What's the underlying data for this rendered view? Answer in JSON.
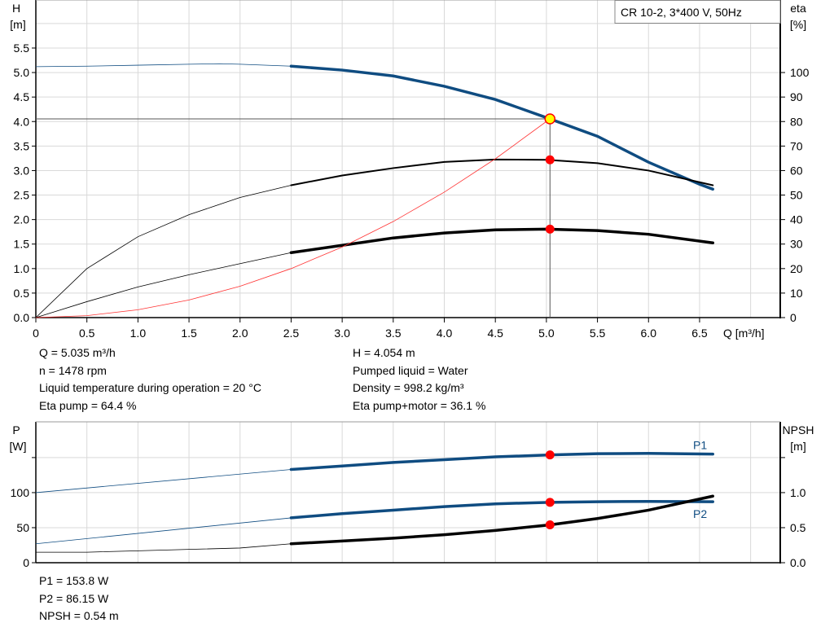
{
  "chart_data": [
    {
      "type": "line",
      "title": "CR 10-2, 3*400 V, 50Hz",
      "xlabel": "Q [m³/h]",
      "ylabel": "H\n[m]",
      "y2label": "eta\n[%]",
      "xlim": [
        0,
        7.29
      ],
      "ylim": [
        0,
        6.48
      ],
      "y2lim": [
        0,
        129.6
      ],
      "xticks": [
        "0",
        "0.5",
        "1.0",
        "1.5",
        "2.0",
        "2.5",
        "3.0",
        "3.5",
        "4.0",
        "4.5",
        "5.0",
        "5.5",
        "6.0",
        "6.5"
      ],
      "yticks": [
        "0.0",
        "0.5",
        "1.0",
        "1.5",
        "2.0",
        "2.5",
        "3.0",
        "3.5",
        "4.0",
        "4.5",
        "5.0",
        "5.5"
      ],
      "y2ticks": [
        "0",
        "10",
        "20",
        "30",
        "40",
        "50",
        "60",
        "70",
        "80",
        "90",
        "100"
      ],
      "grid": true,
      "series": [
        {
          "id": "H",
          "axis": "left",
          "color": "#0f4c81",
          "x": [
            0,
            0.5,
            1.0,
            1.5,
            1.8,
            2.0,
            2.5,
            3.0,
            3.5,
            4.0,
            4.5,
            5.0,
            5.5,
            6.0,
            6.5,
            6.63
          ],
          "y": [
            5.12,
            5.13,
            5.15,
            5.17,
            5.18,
            5.17,
            5.13,
            5.05,
            4.93,
            4.72,
            4.45,
            4.08,
            3.7,
            3.17,
            2.72,
            2.62
          ]
        },
        {
          "id": "eta-pump",
          "axis": "right",
          "color": "#000000",
          "x": [
            0,
            0.5,
            1.0,
            1.5,
            2.0,
            2.5,
            3.0,
            3.5,
            4.0,
            4.5,
            5.0,
            5.5,
            6.0,
            6.63
          ],
          "y": [
            0,
            20,
            33,
            42,
            49,
            54,
            58,
            61,
            63.5,
            64.5,
            64.4,
            63,
            60,
            54
          ]
        },
        {
          "id": "eta-pump-motor",
          "axis": "right",
          "color": "#000000",
          "x": [
            0,
            0.5,
            1.0,
            1.5,
            2.0,
            2.5,
            3.0,
            3.5,
            4.0,
            4.5,
            5.0,
            5.5,
            6.0,
            6.63
          ],
          "y": [
            0,
            6.5,
            12.5,
            17.5,
            22,
            26.5,
            29.5,
            32.5,
            34.5,
            35.8,
            36.1,
            35.5,
            34,
            30.5
          ]
        },
        {
          "id": "system",
          "axis": "left",
          "color": "#ff3333",
          "x": [
            0,
            0.5,
            1.0,
            1.5,
            2.0,
            2.5,
            3.0,
            3.5,
            4.0,
            4.5,
            5.035
          ],
          "y": [
            0,
            0.04,
            0.16,
            0.36,
            0.64,
            1.0,
            1.44,
            1.96,
            2.56,
            3.24,
            4.054
          ]
        }
      ],
      "operating_point": {
        "Q": 5.035,
        "H": 4.054,
        "eta_pump": 64.4,
        "eta_pump_motor": 36.1
      },
      "thick_from_Q": 2.5
    },
    {
      "type": "line",
      "ylabel": "P\n[W]",
      "y2label": "NPSH\n[m]",
      "xlim": [
        0,
        7.29
      ],
      "ylim": [
        0,
        201
      ],
      "y2lim": [
        0,
        2.01
      ],
      "yticks": [
        "0",
        "50",
        "100",
        ""
      ],
      "y2ticks": [
        "0.0",
        "0.5",
        "1.0",
        ""
      ],
      "grid": true,
      "series": [
        {
          "id": "P1",
          "name": "P1",
          "axis": "left",
          "color": "#0f4c81",
          "x": [
            0,
            2.5,
            3.0,
            3.5,
            4.0,
            4.5,
            5.035,
            5.5,
            6.0,
            6.63
          ],
          "y": [
            100,
            133,
            138,
            143,
            147,
            151,
            153.8,
            155.5,
            156,
            155
          ]
        },
        {
          "id": "P2",
          "name": "P2",
          "axis": "left",
          "color": "#0f4c81",
          "x": [
            0,
            2.5,
            3.0,
            3.5,
            4.0,
            4.5,
            5.035,
            5.5,
            6.0,
            6.63
          ],
          "y": [
            27,
            64,
            70,
            75,
            80,
            84,
            86.15,
            87,
            87.5,
            87
          ]
        },
        {
          "id": "NPSH",
          "axis": "right",
          "color": "#000000",
          "x": [
            0,
            0.5,
            1.0,
            1.5,
            2.0,
            2.5,
            3.0,
            3.5,
            4.0,
            4.5,
            5.035,
            5.5,
            6.0,
            6.63
          ],
          "y": [
            0.15,
            0.15,
            0.17,
            0.19,
            0.21,
            0.27,
            0.31,
            0.35,
            0.4,
            0.46,
            0.54,
            0.63,
            0.75,
            0.95
          ]
        }
      ],
      "operating_point": {
        "Q": 5.035,
        "P1": 153.8,
        "P2": 86.15,
        "NPSH": 0.54
      },
      "thick_from_Q": 2.5
    }
  ],
  "info_top": {
    "left": [
      "Q = 5.035 m³/h",
      "n = 1478 rpm",
      "Liquid temperature during operation = 20 °C",
      "Eta pump = 64.4 %"
    ],
    "right": [
      "H = 4.054 m",
      "Pumped liquid = Water",
      "Density = 998.2 kg/m³",
      "Eta pump+motor = 36.1 %"
    ]
  },
  "info_bottom": [
    "P1 = 153.8 W",
    "P2 = 86.15 W",
    "NPSH = 0.54 m"
  ]
}
